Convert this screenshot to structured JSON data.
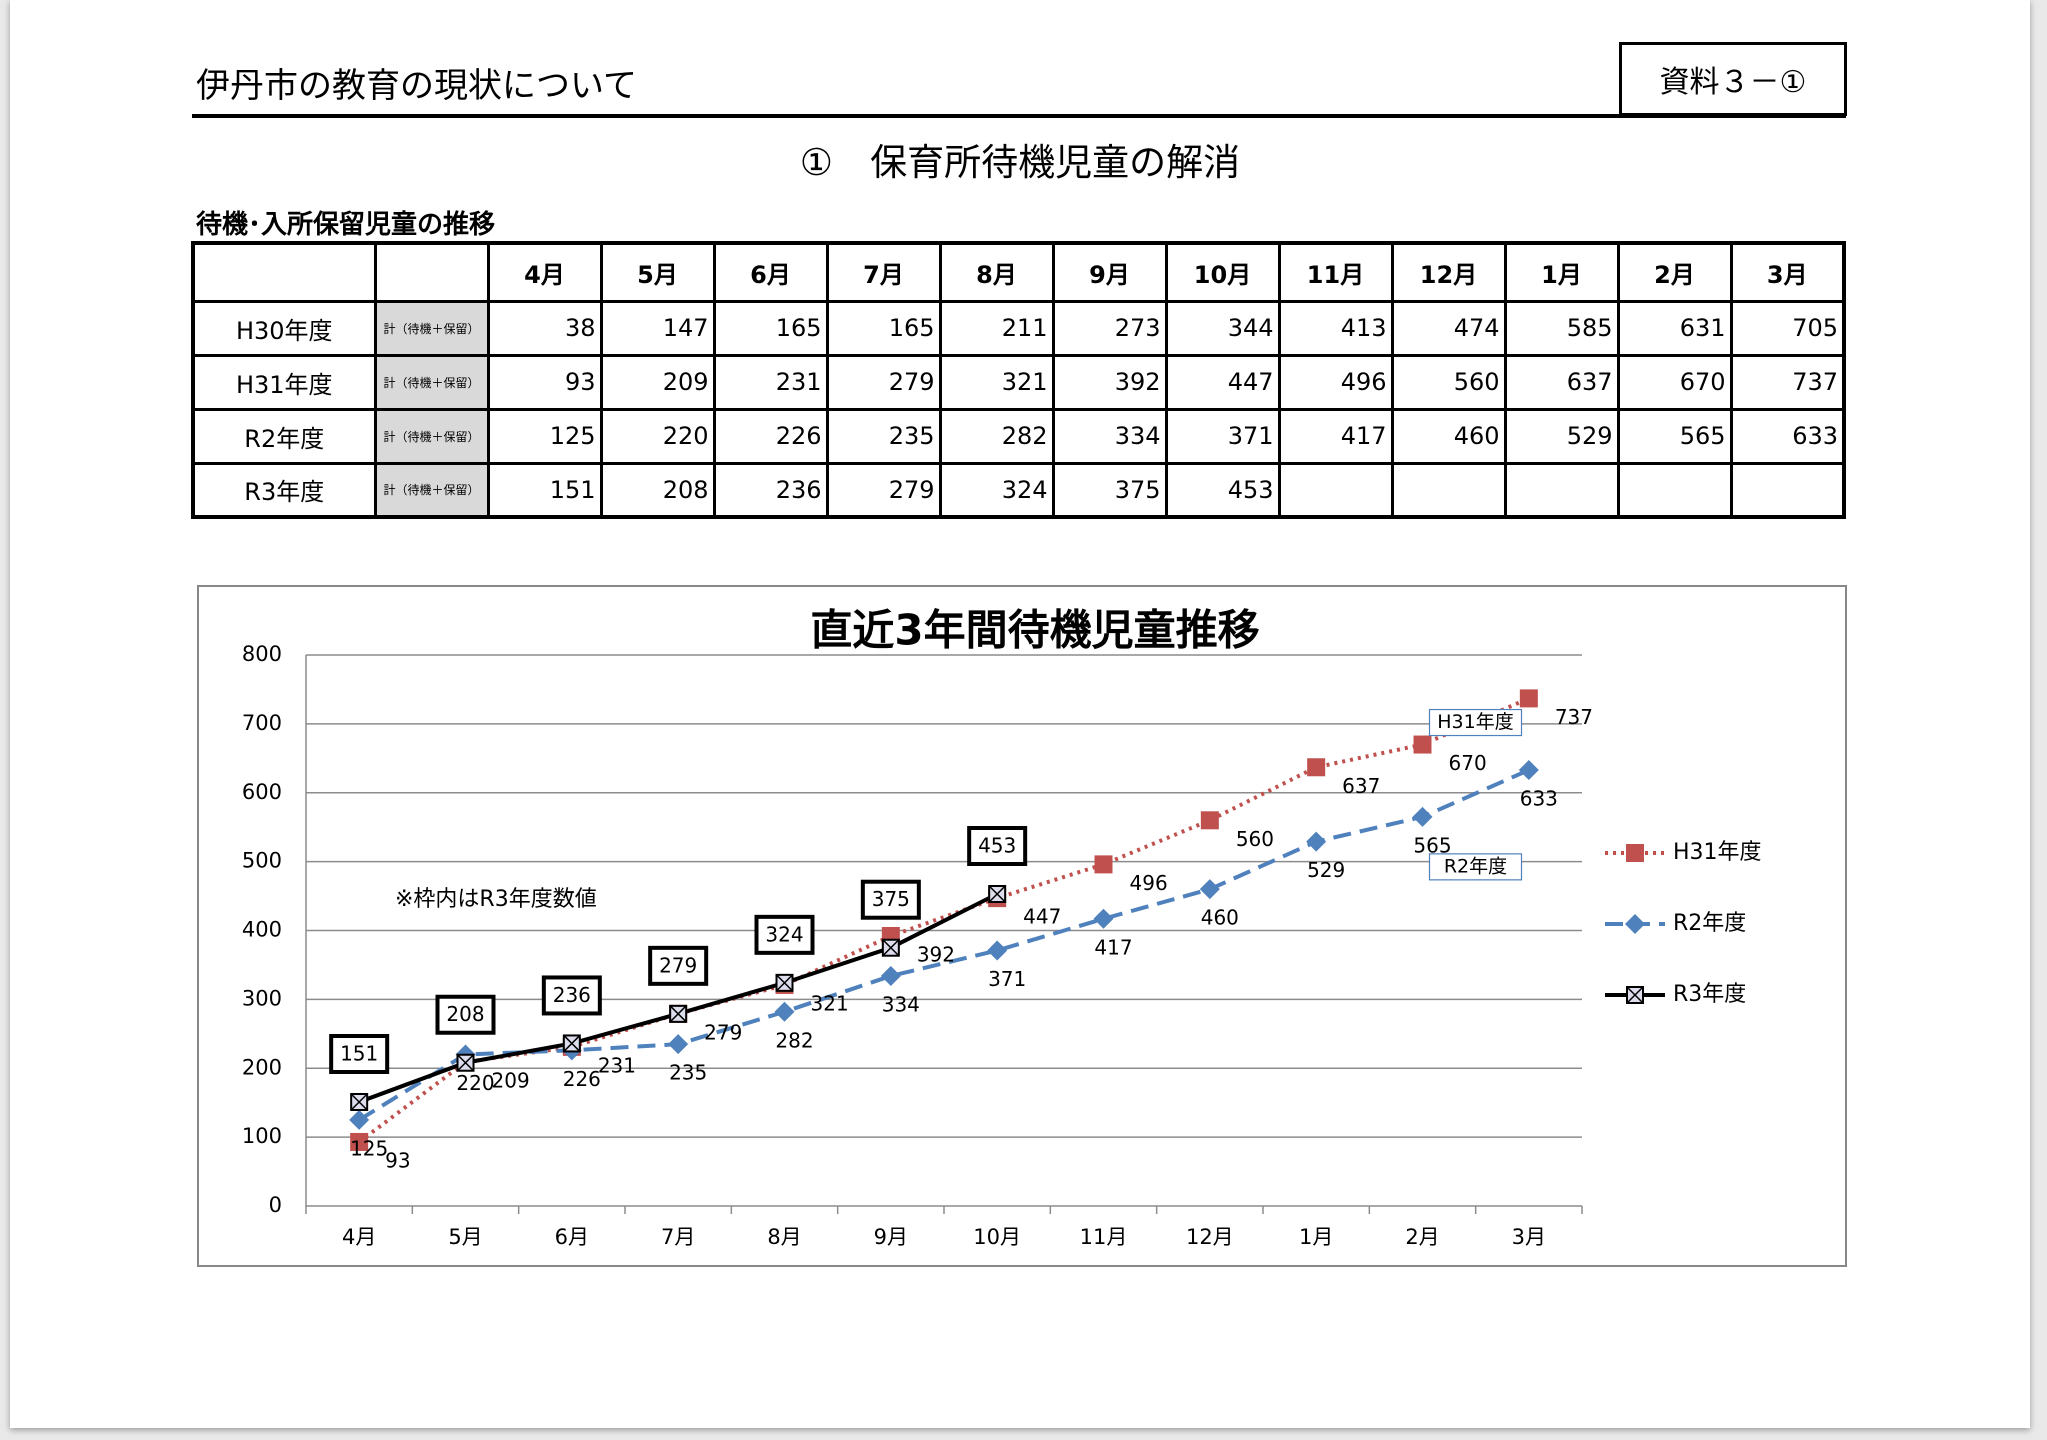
{
  "header": {
    "title": "伊丹市の教育の現状について",
    "badge": "資料３－①"
  },
  "section_title": "①　保育所待機児童の解消",
  "table": {
    "caption": "待機･入所保留児童の推移",
    "columns": [
      "4月",
      "5月",
      "6月",
      "7月",
      "8月",
      "9月",
      "10月",
      "11月",
      "12月",
      "1月",
      "2月",
      "3月"
    ],
    "rows": [
      {
        "label": "H30年度",
        "note": "計（待機＋保留）",
        "values": [
          38,
          147,
          165,
          165,
          211,
          273,
          344,
          413,
          474,
          585,
          631,
          705
        ]
      },
      {
        "label": "H31年度",
        "note": "計（待機＋保留）",
        "values": [
          93,
          209,
          231,
          279,
          321,
          392,
          447,
          496,
          560,
          637,
          670,
          737
        ]
      },
      {
        "label": "R2年度",
        "note": "計（待機＋保留）",
        "values": [
          125,
          220,
          226,
          235,
          282,
          334,
          371,
          417,
          460,
          529,
          565,
          633
        ]
      },
      {
        "label": "R3年度",
        "note": "計（待機＋保留）",
        "values": [
          151,
          208,
          236,
          279,
          324,
          375,
          453
        ]
      }
    ]
  },
  "chart_data": {
    "type": "line",
    "title": "直近3年間待機児童推移",
    "annotation": "※枠内はR3年度数値",
    "categories": [
      "4月",
      "5月",
      "6月",
      "7月",
      "8月",
      "9月",
      "10月",
      "11月",
      "12月",
      "1月",
      "2月",
      "3月"
    ],
    "series": [
      {
        "name": "H31年度",
        "color": "#c0504d",
        "values": [
          93,
          209,
          231,
          279,
          321,
          392,
          447,
          496,
          560,
          637,
          670,
          737
        ]
      },
      {
        "name": "R2年度",
        "color": "#4f81bd",
        "values": [
          125,
          220,
          226,
          235,
          282,
          334,
          371,
          417,
          460,
          529,
          565,
          633
        ]
      },
      {
        "name": "R3年度",
        "color": "#000000",
        "values": [
          151,
          208,
          236,
          279,
          324,
          375,
          453,
          null,
          null,
          null,
          null,
          null
        ]
      }
    ],
    "ylim": [
      0,
      800
    ],
    "yticks": [
      0,
      100,
      200,
      300,
      400,
      500,
      600,
      700,
      800
    ],
    "grid": true,
    "legend": "right"
  }
}
